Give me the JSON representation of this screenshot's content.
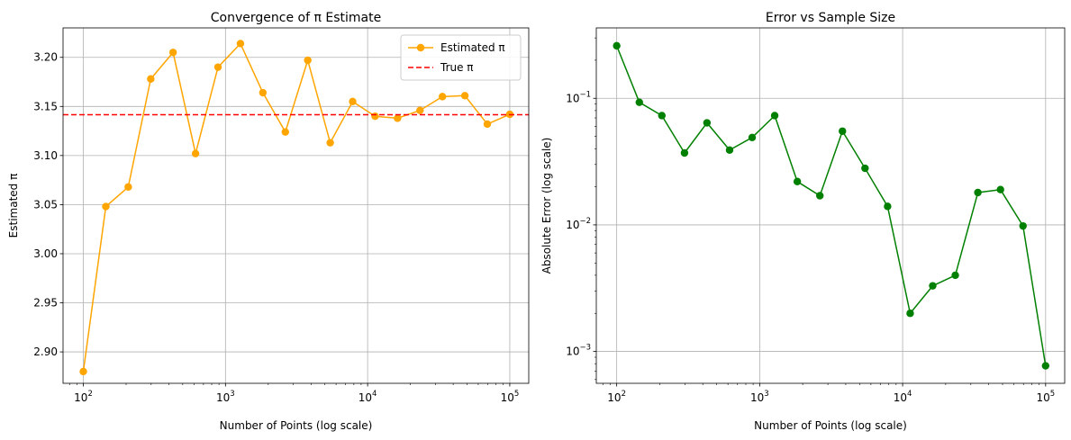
{
  "colors": {
    "estimate": "#FFA500",
    "true_line": "#FF0000",
    "error": "#008000",
    "grid": "#b0b0b0"
  },
  "chart_data": [
    {
      "type": "line",
      "title": "Convergence of π Estimate",
      "xlabel": "Number of Points (log scale)",
      "ylabel": "Estimated π",
      "xscale": "log",
      "xlim": [
        72,
        136000
      ],
      "ylim": [
        2.868,
        3.23
      ],
      "xticks": [
        {
          "value": 100,
          "base": "10",
          "exp": "2"
        },
        {
          "value": 1000,
          "base": "10",
          "exp": "3"
        },
        {
          "value": 10000,
          "base": "10",
          "exp": "4"
        },
        {
          "value": 100000,
          "base": "10",
          "exp": "5"
        }
      ],
      "yticks": [
        {
          "value": 2.9,
          "label": "2.90"
        },
        {
          "value": 2.95,
          "label": "2.95"
        },
        {
          "value": 3.0,
          "label": "3.00"
        },
        {
          "value": 3.05,
          "label": "3.05"
        },
        {
          "value": 3.1,
          "label": "3.10"
        },
        {
          "value": 3.15,
          "label": "3.15"
        },
        {
          "value": 3.2,
          "label": "3.20"
        }
      ],
      "grid": true,
      "legend": "top-right",
      "x": [
        100,
        144,
        207,
        298,
        428,
        616,
        886,
        1274,
        1833,
        2637,
        3793,
        5456,
        7848,
        11288,
        16238,
        23357,
        33598,
        48329,
        69519,
        100000
      ],
      "series": [
        {
          "name": "Estimated π",
          "style": "line-marker",
          "values": [
            2.88,
            3.048,
            3.068,
            3.178,
            3.205,
            3.102,
            3.19,
            3.214,
            3.164,
            3.124,
            3.197,
            3.113,
            3.155,
            3.14,
            3.138,
            3.146,
            3.16,
            3.161,
            3.132,
            3.142
          ]
        },
        {
          "name": "True π",
          "style": "hline-dashed",
          "value": 3.14159
        }
      ]
    },
    {
      "type": "line",
      "title": "Error vs Sample Size",
      "xlabel": "Number of Points (log scale)",
      "ylabel": "Absolute Error (log scale)",
      "xscale": "log",
      "yscale": "log",
      "xlim": [
        72,
        136000
      ],
      "ylim": [
        0.00056,
        0.36
      ],
      "xticks": [
        {
          "value": 100,
          "base": "10",
          "exp": "2"
        },
        {
          "value": 1000,
          "base": "10",
          "exp": "3"
        },
        {
          "value": 10000,
          "base": "10",
          "exp": "4"
        },
        {
          "value": 100000,
          "base": "10",
          "exp": "5"
        }
      ],
      "yticks": [
        {
          "value": 0.001,
          "base": "10",
          "exp": "−3"
        },
        {
          "value": 0.01,
          "base": "10",
          "exp": "−2"
        },
        {
          "value": 0.1,
          "base": "10",
          "exp": "−1"
        }
      ],
      "grid": true,
      "x": [
        100,
        144,
        207,
        298,
        428,
        616,
        886,
        1274,
        1833,
        2637,
        3793,
        5456,
        7848,
        11288,
        16238,
        23357,
        33598,
        48329,
        69519,
        100000
      ],
      "series": [
        {
          "name": "",
          "style": "line-marker",
          "values": [
            0.26,
            0.093,
            0.073,
            0.037,
            0.064,
            0.039,
            0.049,
            0.073,
            0.022,
            0.017,
            0.055,
            0.028,
            0.014,
            0.002,
            0.0033,
            0.004,
            0.018,
            0.019,
            0.0098,
            0.00077
          ]
        }
      ]
    }
  ]
}
